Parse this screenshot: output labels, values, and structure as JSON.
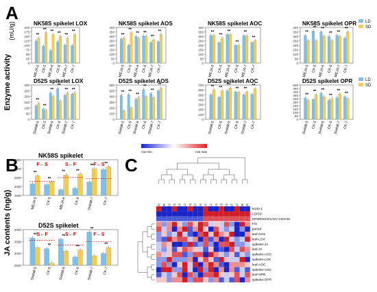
{
  "panels": {
    "A": "A",
    "B": "B",
    "C": "C"
  },
  "colors": {
    "LD": "#7ec0e8",
    "SD": "#f6cc4e",
    "sig": "#d40000",
    "frame": "#777777"
  },
  "legend": {
    "ld": "LD",
    "sd": "SD"
  },
  "axis_labels": {
    "enzyme": "Enzyme activity",
    "enzyme_unit": "(mU/g)",
    "ja": "JA contents (ng/g)"
  },
  "chart_data": [
    {
      "id": "nk-lox",
      "type": "bar",
      "title": "NK58S spikelet   LOX",
      "ylim": [
        0,
        200
      ],
      "yticks": [
        0,
        25,
        50,
        75,
        100,
        125,
        150,
        175,
        200
      ],
      "categories": [
        "MEJA-5",
        "CK-5",
        "MEJA-6",
        "CK-6",
        "MEJA-7",
        "CK-7"
      ],
      "series": [
        {
          "name": "LD",
          "values": [
            125,
            95,
            70,
            120,
            100,
            98
          ]
        },
        {
          "name": "SD",
          "values": [
            140,
            170,
            160,
            150,
            140,
            160
          ]
        }
      ],
      "labels": [
        "**",
        "**",
        "**",
        "**",
        "**",
        "**"
      ]
    },
    {
      "id": "nk-aos",
      "type": "bar",
      "title": "NK58S spikelet   AOS",
      "ylim": [
        0,
        400
      ],
      "yticks": [
        0,
        50,
        100,
        150,
        200,
        250,
        300,
        350,
        400
      ],
      "categories": [
        "MEJA-5",
        "CK-5",
        "MEJA-6",
        "CK-6",
        "MEJA-7",
        "CK-7"
      ],
      "series": [
        {
          "name": "LD",
          "values": [
            270,
            200,
            300,
            305,
            230,
            240
          ]
        },
        {
          "name": "SD",
          "values": [
            280,
            340,
            280,
            300,
            260,
            320
          ]
        }
      ],
      "labels": [
        "**",
        "**",
        "**",
        "**",
        "**",
        "**"
      ]
    },
    {
      "id": "nk-aoc",
      "type": "bar",
      "title": "NK58S spikelet   AOC",
      "ylim": [
        0,
        400
      ],
      "yticks": [
        0,
        50,
        100,
        150,
        200,
        250,
        300,
        350,
        400
      ],
      "categories": [
        "MEJA-5",
        "CK-5",
        "MEJA-6",
        "CK-6",
        "MEJA-7",
        "CK-7"
      ],
      "series": [
        {
          "name": "LD",
          "values": [
            310,
            230,
            320,
            200,
            310,
            230
          ]
        },
        {
          "name": "SD",
          "values": [
            310,
            280,
            320,
            200,
            305,
            250
          ]
        }
      ],
      "labels": [
        "**",
        "**",
        "**",
        "**",
        "**",
        "**"
      ]
    },
    {
      "id": "nk-opr",
      "type": "bar",
      "title": "NK58S spikelet   OPR",
      "ylim": [
        0,
        400
      ],
      "yticks": [
        0,
        50,
        100,
        150,
        200,
        250,
        300,
        350,
        400
      ],
      "categories": [
        "MEJA-5",
        "CK-5",
        "MEJA-6",
        "CK-6",
        "MEJA-7",
        "CK-7"
      ],
      "series": [
        {
          "name": "LD",
          "values": [
            310,
            360,
            350,
            300,
            310,
            280
          ]
        },
        {
          "name": "SD",
          "values": [
            250,
            250,
            300,
            250,
            300,
            350
          ]
        }
      ],
      "labels": [
        "**",
        "**",
        "**",
        "**",
        "**",
        "**"
      ]
    },
    {
      "id": "d5-lox",
      "type": "bar",
      "title": "D52S spikelet   LOX",
      "ylim": [
        0,
        300
      ],
      "yticks": [
        0,
        50,
        100,
        150,
        200,
        250,
        300
      ],
      "categories": [
        "SHAM-5",
        "CK-5",
        "SHAM-6",
        "CK-6",
        "SHAM-7",
        "CK-7"
      ],
      "series": [
        {
          "name": "LD",
          "values": [
            120,
            90,
            230,
            270,
            210,
            220
          ]
        },
        {
          "name": "SD",
          "values": [
            140,
            80,
            200,
            160,
            230,
            230
          ]
        }
      ],
      "labels": [
        "**",
        "**",
        "**",
        "**",
        "**",
        "**"
      ]
    },
    {
      "id": "d5-aos",
      "type": "bar",
      "title": "D52S spikelet   AOS",
      "ylim": [
        0,
        600
      ],
      "yticks": [
        0,
        100,
        200,
        300,
        400,
        500,
        600
      ],
      "categories": [
        "SHAM-5",
        "CK-5",
        "SHAM-6",
        "CK-6",
        "SHAM-7",
        "CK-7"
      ],
      "series": [
        {
          "name": "LD",
          "values": [
            420,
            430,
            350,
            520,
            450,
            500
          ]
        },
        {
          "name": "SD",
          "values": [
            150,
            200,
            380,
            400,
            380,
            550
          ]
        }
      ],
      "labels": [
        "**",
        "**",
        "**",
        "**",
        "**",
        "**"
      ]
    },
    {
      "id": "d5-aoc",
      "type": "bar",
      "title": "D52S spikelet   AOC",
      "ylim": [
        0,
        700
      ],
      "yticks": [
        0,
        100,
        200,
        300,
        400,
        500,
        600,
        700
      ],
      "categories": [
        "SHAM-5",
        "CK-5",
        "SHAM-6",
        "CK-6",
        "SHAM-7",
        "CK-7"
      ],
      "series": [
        {
          "name": "LD",
          "values": [
            500,
            450,
            580,
            560,
            500,
            510
          ]
        },
        {
          "name": "SD",
          "values": [
            600,
            580,
            640,
            560,
            560,
            620
          ]
        }
      ],
      "labels": [
        "**",
        "**",
        "**",
        "**",
        "**",
        "**"
      ]
    },
    {
      "id": "d5-opr",
      "type": "bar",
      "title": "D52S spikelet   OPR",
      "ylim": [
        0,
        500
      ],
      "yticks": [
        0,
        50,
        100,
        150,
        200,
        250,
        300,
        350,
        400,
        450,
        500
      ],
      "categories": [
        "SHAM-5",
        "CK-5",
        "SHAM-6",
        "CK-6",
        "SHAM-7",
        "CK-7"
      ],
      "series": [
        {
          "name": "LD",
          "values": [
            310,
            290,
            380,
            280,
            310,
            330
          ]
        },
        {
          "name": "SD",
          "values": [
            280,
            360,
            330,
            300,
            370,
            300
          ]
        }
      ],
      "labels": [
        "**",
        "**",
        "**",
        "**",
        "**",
        "**"
      ]
    },
    {
      "id": "ja-nk",
      "type": "bar",
      "title": "NK58S spikelet",
      "ylim": [
        1500,
        3500
      ],
      "yticks": [
        1500,
        2000,
        2500,
        3000,
        3500
      ],
      "categories": [
        "MEJA-5",
        "CK-5",
        "MEJA-6",
        "CK-6",
        "SHAM-7",
        "CK-7"
      ],
      "series": [
        {
          "name": "LD",
          "values": [
            2150,
            2100,
            1820,
            1900,
            2250,
            2950
          ]
        },
        {
          "name": "SD",
          "values": [
            2600,
            2250,
            2650,
            2700,
            3000,
            3100
          ]
        }
      ],
      "labels": [
        "**",
        "**",
        "**",
        "**",
        "**",
        "**"
      ],
      "groups": [
        {
          "from": "F",
          "to": "S"
        },
        {
          "from": "S",
          "to": "F"
        },
        {
          "from": "F",
          "to": "S"
        }
      ],
      "ref_lines": [
        2280,
        2500,
        2450
      ]
    },
    {
      "id": "ja-d5",
      "type": "bar",
      "title": "D52S spikelet",
      "ylim": [
        2500,
        4000
      ],
      "yticks": [
        2500,
        3000,
        3500,
        4000
      ],
      "categories": [
        "SHAM-5",
        "CK-5",
        "SHAM-6",
        "CK-6",
        "SHAM-7",
        "CK-7"
      ],
      "series": [
        {
          "name": "LD",
          "values": [
            3650,
            3200,
            3600,
            2850,
            3900,
            3000
          ]
        },
        {
          "name": "SD",
          "values": [
            3250,
            2600,
            3100,
            3150,
            2900,
            3250
          ]
        }
      ],
      "labels": [
        "**",
        "**",
        "**",
        "**",
        "**",
        "**"
      ],
      "groups": [
        {
          "from": "S",
          "to": "F"
        },
        {
          "from": "S",
          "to": "F"
        },
        {
          "from": "F",
          "to": "S"
        }
      ],
      "ref_lines": [
        3550,
        3350,
        3500
      ]
    },
    {
      "id": "heatmap",
      "type": "heatmap",
      "scale_labels": {
        "min": "row min",
        "max": "row max"
      },
      "top_labels": [
        "N1/D-1",
        "LD/SD",
        "SPW/INGO/1/JA/-1SHAM"
      ],
      "columns": [
        "LD-MEJA-NK58S-F-R",
        "LD-SHAM-D52S-F-R",
        "LD-SHAM-NK58S-S",
        "LD-MEJA-NK58S-S",
        "LD-CK-NK58S-S",
        "LD-CK-NK58S-F",
        "LD-CK-D52S-S",
        "LD-CK-D52S-F",
        "SD-MEJA-NK58S-S",
        "SD-SHAM-D52S-F",
        "SD-SHAM-NK58S-F",
        "SD-CK-D52S-S",
        "SD-CK-NK58S-S",
        "LD-SHAM-D52S-S",
        "LD-SHAM-NK58S-F",
        "SD-CK-NK58S-F",
        "SD-SHAM-D52S-S-R",
        "SD-MEJA-NK58S-F-R"
      ],
      "rows": [
        "F/S",
        "period",
        "leaf-AOS",
        "leaf-LOX",
        "spikelet-JA",
        "leaf-JA",
        "spikelet-AOS",
        "spikelet-LOX",
        "leaf-AOC",
        "spikelet-AOC",
        "leaf-OPR",
        "spikelet-OPR"
      ]
    }
  ]
}
